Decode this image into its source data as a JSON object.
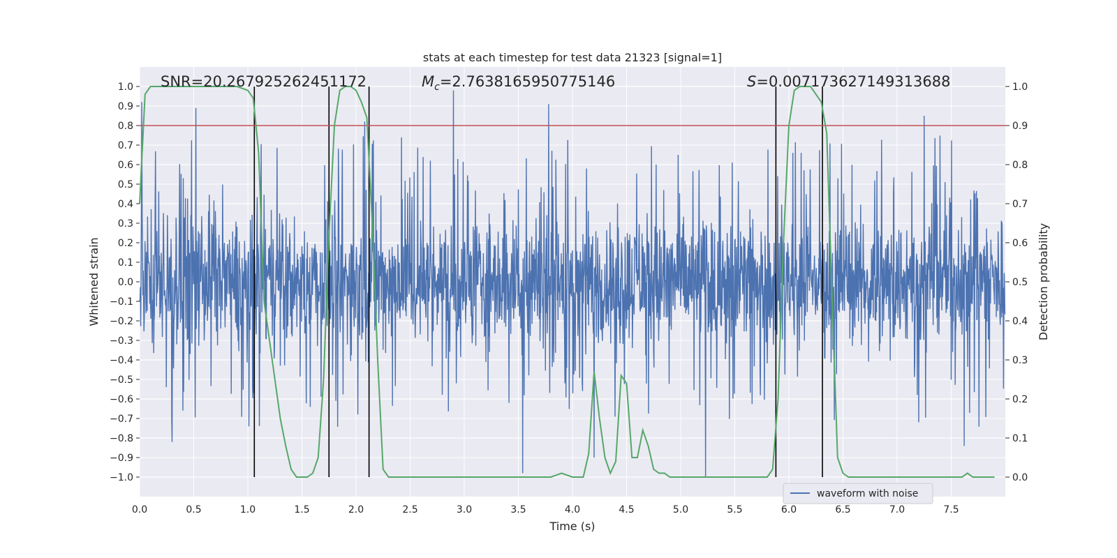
{
  "chart_data": {
    "type": "line",
    "title": "stats at each timestep for test data 21323 [signal=1]",
    "xlabel": "Time (s)",
    "ylabel": "Whitened strain",
    "y2label": "Detection probability",
    "xlim": [
      0.0,
      8.0
    ],
    "ylim": [
      -1.1,
      1.1
    ],
    "y2lim": [
      -0.05,
      1.05
    ],
    "xticks": [
      0.0,
      0.5,
      1.0,
      1.5,
      2.0,
      2.5,
      3.0,
      3.5,
      4.0,
      4.5,
      5.0,
      5.5,
      6.0,
      6.5,
      7.0,
      7.5
    ],
    "xtick_labels": [
      "0.0",
      "0.5",
      "1.0",
      "1.5",
      "2.0",
      "2.5",
      "3.0",
      "3.5",
      "4.0",
      "4.5",
      "5.0",
      "5.5",
      "6.0",
      "6.5",
      "7.0",
      "7.5"
    ],
    "yticks": [
      1.0,
      0.9,
      0.8,
      0.7,
      0.6,
      0.5,
      0.4,
      0.3,
      0.2,
      0.1,
      0.0,
      -0.1,
      -0.2,
      -0.3,
      -0.4,
      -0.5,
      -0.6,
      -0.7,
      -0.8,
      -0.9,
      -1.0
    ],
    "ytick_labels": [
      "1.0",
      "0.9",
      "0.8",
      "0.7",
      "0.6",
      "0.5",
      "0.4",
      "0.3",
      "0.2",
      "0.1",
      "0.0",
      "−0.1",
      "−0.2",
      "−0.3",
      "−0.4",
      "−0.5",
      "−0.6",
      "−0.7",
      "−0.8",
      "−0.9",
      "−1.0"
    ],
    "y2ticks": [
      1.0,
      0.9,
      0.8,
      0.7,
      0.6,
      0.5,
      0.4,
      0.3,
      0.2,
      0.1,
      0.0
    ],
    "y2tick_labels": [
      "1.0",
      "0.9",
      "0.8",
      "0.7",
      "0.6",
      "0.5",
      "0.4",
      "0.3",
      "0.2",
      "0.1",
      "0.0"
    ],
    "annotations": {
      "snr": "SNR=20.267925262451172",
      "mc_symbol": "M",
      "mc_sub": "c",
      "mc_value": "=2.7638165950775146",
      "s_symbol": "S",
      "s_value": "=0.007173627149313688"
    },
    "threshold": 0.9,
    "vertical_lines": [
      1.06,
      1.75,
      2.12,
      5.88,
      6.31
    ],
    "waveform": {
      "name": "waveform with noise",
      "n_samples": 2400,
      "peaks": [
        {
          "x": 0.02,
          "y": 0.92
        },
        {
          "x": 0.3,
          "y": -0.82
        },
        {
          "x": 0.52,
          "y": 0.89
        },
        {
          "x": 1.01,
          "y": -0.74
        },
        {
          "x": 2.08,
          "y": 0.82
        },
        {
          "x": 2.9,
          "y": 0.98
        },
        {
          "x": 3.54,
          "y": -0.98
        },
        {
          "x": 3.78,
          "y": 0.91
        },
        {
          "x": 4.2,
          "y": -0.9
        },
        {
          "x": 5.23,
          "y": -1.0
        },
        {
          "x": 7.62,
          "y": -0.84
        },
        {
          "x": 7.25,
          "y": 0.85
        }
      ]
    },
    "probability": {
      "x": [
        0.0,
        0.05,
        0.1,
        0.15,
        0.2,
        0.3,
        0.4,
        0.5,
        0.6,
        0.7,
        0.8,
        0.9,
        1.0,
        1.05,
        1.1,
        1.15,
        1.2,
        1.3,
        1.35,
        1.4,
        1.45,
        1.5,
        1.55,
        1.6,
        1.65,
        1.7,
        1.75,
        1.8,
        1.85,
        1.9,
        1.95,
        2.0,
        2.05,
        2.1,
        2.15,
        2.2,
        2.25,
        2.3,
        2.4,
        2.6,
        2.8,
        3.0,
        3.2,
        3.4,
        3.6,
        3.8,
        3.9,
        4.0,
        4.05,
        4.1,
        4.15,
        4.2,
        4.25,
        4.3,
        4.35,
        4.4,
        4.45,
        4.5,
        4.55,
        4.6,
        4.65,
        4.7,
        4.75,
        4.8,
        4.85,
        4.9,
        5.0,
        5.2,
        5.4,
        5.6,
        5.7,
        5.8,
        5.85,
        5.9,
        5.95,
        6.0,
        6.05,
        6.1,
        6.15,
        6.2,
        6.25,
        6.3,
        6.35,
        6.4,
        6.45,
        6.5,
        6.55,
        6.6,
        6.8,
        7.0,
        7.2,
        7.4,
        7.5,
        7.6,
        7.65,
        7.7,
        7.8,
        7.9
      ],
      "y": [
        0.7,
        0.98,
        1.0,
        1.0,
        1.0,
        1.0,
        1.0,
        1.0,
        1.0,
        1.0,
        1.0,
        1.0,
        0.99,
        0.97,
        0.83,
        0.45,
        0.35,
        0.15,
        0.08,
        0.02,
        0.0,
        0.0,
        0.0,
        0.01,
        0.05,
        0.25,
        0.62,
        0.9,
        0.99,
        1.0,
        1.0,
        0.99,
        0.96,
        0.92,
        0.65,
        0.3,
        0.02,
        0.0,
        0.0,
        0.0,
        0.0,
        0.0,
        0.0,
        0.0,
        0.0,
        0.0,
        0.01,
        0.0,
        0.0,
        0.0,
        0.06,
        0.27,
        0.15,
        0.05,
        0.01,
        0.04,
        0.26,
        0.24,
        0.05,
        0.05,
        0.12,
        0.08,
        0.02,
        0.01,
        0.01,
        0.0,
        0.0,
        0.0,
        0.0,
        0.0,
        0.0,
        0.0,
        0.02,
        0.2,
        0.6,
        0.9,
        0.99,
        1.0,
        1.0,
        1.0,
        0.98,
        0.96,
        0.88,
        0.45,
        0.05,
        0.01,
        0.0,
        0.0,
        0.0,
        0.0,
        0.0,
        0.0,
        0.0,
        0.0,
        0.01,
        0.0,
        0.0,
        0.0
      ]
    },
    "legend_location": "lower-right",
    "grid": true
  }
}
